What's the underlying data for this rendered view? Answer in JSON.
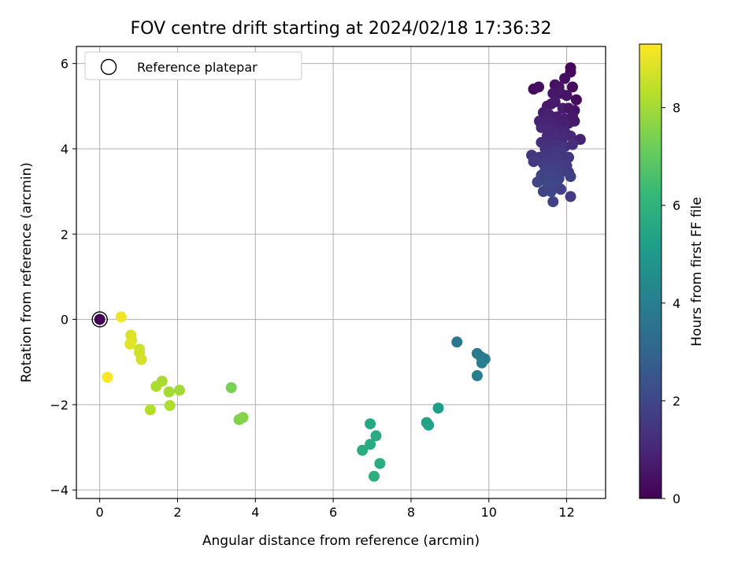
{
  "chart_data": {
    "type": "scatter",
    "title": "FOV centre drift starting at 2024/02/18 17:36:32",
    "xlabel": "Angular distance from reference (arcmin)",
    "ylabel": "Rotation from reference (arcmin)",
    "xlim": [
      -0.6,
      13.0
    ],
    "ylim": [
      -4.2,
      6.4
    ],
    "xticks": [
      0,
      2,
      4,
      6,
      8,
      10,
      12
    ],
    "yticks": [
      -4,
      -2,
      0,
      2,
      4,
      6
    ],
    "grid": true,
    "legend": {
      "position": "top-left",
      "entries": [
        "Reference platepar"
      ]
    },
    "reference_point": {
      "x": 0,
      "y": 0
    },
    "colorbar": {
      "label": "Hours from first FF file",
      "min": 0,
      "max": 9.3,
      "ticks": [
        0,
        2,
        4,
        6,
        8
      ],
      "colormap": "viridis",
      "stops": [
        "#440154",
        "#482878",
        "#3e4989",
        "#31688e",
        "#26828e",
        "#1f9e89",
        "#35b779",
        "#6ece58",
        "#b5de2b",
        "#fde725"
      ]
    },
    "series": [
      {
        "points": [
          {
            "x": 0.0,
            "y": 0.0,
            "c": 0.0
          },
          {
            "x": 11.15,
            "y": 5.4,
            "c": 0.3
          },
          {
            "x": 11.28,
            "y": 5.45,
            "c": 0.35
          },
          {
            "x": 12.1,
            "y": 5.9,
            "c": 0.2
          },
          {
            "x": 12.1,
            "y": 5.8,
            "c": 0.25
          },
          {
            "x": 11.95,
            "y": 5.65,
            "c": 0.4
          },
          {
            "x": 11.7,
            "y": 5.5,
            "c": 0.45
          },
          {
            "x": 11.8,
            "y": 5.45,
            "c": 0.5
          },
          {
            "x": 12.15,
            "y": 5.45,
            "c": 0.3
          },
          {
            "x": 11.65,
            "y": 5.3,
            "c": 0.55
          },
          {
            "x": 11.85,
            "y": 5.3,
            "c": 0.6
          },
          {
            "x": 12.0,
            "y": 5.25,
            "c": 0.5
          },
          {
            "x": 12.25,
            "y": 5.15,
            "c": 0.3
          },
          {
            "x": 11.5,
            "y": 5.0,
            "c": 0.65
          },
          {
            "x": 11.6,
            "y": 5.05,
            "c": 0.6
          },
          {
            "x": 11.7,
            "y": 5.1,
            "c": 0.7
          },
          {
            "x": 11.9,
            "y": 4.95,
            "c": 0.75
          },
          {
            "x": 12.05,
            "y": 4.95,
            "c": 0.55
          },
          {
            "x": 12.2,
            "y": 4.9,
            "c": 0.5
          },
          {
            "x": 11.4,
            "y": 4.85,
            "c": 0.8
          },
          {
            "x": 11.55,
            "y": 4.8,
            "c": 0.85
          },
          {
            "x": 11.75,
            "y": 4.75,
            "c": 0.8
          },
          {
            "x": 11.95,
            "y": 4.7,
            "c": 0.75
          },
          {
            "x": 12.15,
            "y": 4.75,
            "c": 0.65
          },
          {
            "x": 11.3,
            "y": 4.65,
            "c": 0.9
          },
          {
            "x": 11.45,
            "y": 4.6,
            "c": 0.95
          },
          {
            "x": 11.65,
            "y": 4.6,
            "c": 0.9
          },
          {
            "x": 11.85,
            "y": 4.55,
            "c": 0.85
          },
          {
            "x": 12.05,
            "y": 4.6,
            "c": 0.8
          },
          {
            "x": 12.2,
            "y": 4.65,
            "c": 0.7
          },
          {
            "x": 11.35,
            "y": 4.5,
            "c": 1.0
          },
          {
            "x": 11.55,
            "y": 4.45,
            "c": 1.05
          },
          {
            "x": 11.75,
            "y": 4.4,
            "c": 1.0
          },
          {
            "x": 11.95,
            "y": 4.4,
            "c": 0.95
          },
          {
            "x": 11.5,
            "y": 4.3,
            "c": 1.1
          },
          {
            "x": 11.7,
            "y": 4.25,
            "c": 1.15
          },
          {
            "x": 11.9,
            "y": 4.25,
            "c": 1.1
          },
          {
            "x": 12.1,
            "y": 4.3,
            "c": 1.0
          },
          {
            "x": 12.35,
            "y": 4.22,
            "c": 0.9
          },
          {
            "x": 11.35,
            "y": 4.15,
            "c": 1.25
          },
          {
            "x": 11.55,
            "y": 4.1,
            "c": 1.3
          },
          {
            "x": 11.75,
            "y": 4.1,
            "c": 1.35
          },
          {
            "x": 11.95,
            "y": 4.05,
            "c": 1.3
          },
          {
            "x": 12.15,
            "y": 4.1,
            "c": 1.2
          },
          {
            "x": 11.45,
            "y": 4.0,
            "c": 1.4
          },
          {
            "x": 11.65,
            "y": 3.95,
            "c": 1.45
          },
          {
            "x": 11.85,
            "y": 3.95,
            "c": 1.5
          },
          {
            "x": 11.1,
            "y": 3.85,
            "c": 1.4
          },
          {
            "x": 11.3,
            "y": 3.8,
            "c": 1.5
          },
          {
            "x": 11.5,
            "y": 3.8,
            "c": 1.55
          },
          {
            "x": 11.7,
            "y": 3.8,
            "c": 1.6
          },
          {
            "x": 11.9,
            "y": 3.75,
            "c": 1.55
          },
          {
            "x": 12.05,
            "y": 3.8,
            "c": 1.45
          },
          {
            "x": 11.15,
            "y": 3.7,
            "c": 1.6
          },
          {
            "x": 11.4,
            "y": 3.65,
            "c": 1.65
          },
          {
            "x": 11.6,
            "y": 3.65,
            "c": 1.7
          },
          {
            "x": 11.8,
            "y": 3.6,
            "c": 1.75
          },
          {
            "x": 12.0,
            "y": 3.6,
            "c": 1.65
          },
          {
            "x": 11.45,
            "y": 3.5,
            "c": 1.8
          },
          {
            "x": 11.65,
            "y": 3.5,
            "c": 1.85
          },
          {
            "x": 11.85,
            "y": 3.45,
            "c": 1.8
          },
          {
            "x": 12.05,
            "y": 3.45,
            "c": 1.7
          },
          {
            "x": 11.35,
            "y": 3.38,
            "c": 1.9
          },
          {
            "x": 11.6,
            "y": 3.35,
            "c": 1.95
          },
          {
            "x": 11.8,
            "y": 3.3,
            "c": 1.9
          },
          {
            "x": 12.1,
            "y": 3.35,
            "c": 1.75
          },
          {
            "x": 11.25,
            "y": 3.22,
            "c": 1.95
          },
          {
            "x": 11.5,
            "y": 3.2,
            "c": 2.0
          },
          {
            "x": 11.75,
            "y": 3.18,
            "c": 2.0
          },
          {
            "x": 11.4,
            "y": 3.0,
            "c": 1.9
          },
          {
            "x": 11.6,
            "y": 3.0,
            "c": 1.95
          },
          {
            "x": 11.85,
            "y": 3.05,
            "c": 1.85
          },
          {
            "x": 12.1,
            "y": 2.88,
            "c": 1.6
          },
          {
            "x": 11.65,
            "y": 2.76,
            "c": 1.8
          },
          {
            "x": 9.18,
            "y": -0.53,
            "c": 3.7
          },
          {
            "x": 9.7,
            "y": -0.8,
            "c": 3.8
          },
          {
            "x": 9.8,
            "y": -0.88,
            "c": 3.85
          },
          {
            "x": 9.9,
            "y": -0.93,
            "c": 3.9
          },
          {
            "x": 9.82,
            "y": -1.02,
            "c": 3.95
          },
          {
            "x": 9.7,
            "y": -1.32,
            "c": 4.0
          },
          {
            "x": 8.7,
            "y": -2.08,
            "c": 5.2
          },
          {
            "x": 8.4,
            "y": -2.42,
            "c": 5.3
          },
          {
            "x": 8.45,
            "y": -2.48,
            "c": 5.35
          },
          {
            "x": 6.95,
            "y": -2.45,
            "c": 5.6
          },
          {
            "x": 7.1,
            "y": -2.73,
            "c": 5.65
          },
          {
            "x": 6.95,
            "y": -2.93,
            "c": 5.7
          },
          {
            "x": 6.75,
            "y": -3.07,
            "c": 5.75
          },
          {
            "x": 7.2,
            "y": -3.38,
            "c": 5.8
          },
          {
            "x": 7.05,
            "y": -3.68,
            "c": 5.85
          },
          {
            "x": 3.38,
            "y": -1.6,
            "c": 7.4
          },
          {
            "x": 3.58,
            "y": -2.35,
            "c": 7.5
          },
          {
            "x": 3.68,
            "y": -2.3,
            "c": 7.55
          },
          {
            "x": 1.6,
            "y": -1.45,
            "c": 8.1
          },
          {
            "x": 1.45,
            "y": -1.57,
            "c": 8.15
          },
          {
            "x": 2.05,
            "y": -1.66,
            "c": 8.0
          },
          {
            "x": 1.78,
            "y": -1.7,
            "c": 8.05
          },
          {
            "x": 1.8,
            "y": -2.02,
            "c": 8.2
          },
          {
            "x": 1.3,
            "y": -2.12,
            "c": 8.25
          },
          {
            "x": 1.02,
            "y": -0.7,
            "c": 8.6
          },
          {
            "x": 1.02,
            "y": -0.78,
            "c": 8.65
          },
          {
            "x": 1.07,
            "y": -0.94,
            "c": 8.7
          },
          {
            "x": 0.8,
            "y": -0.37,
            "c": 8.8
          },
          {
            "x": 0.82,
            "y": -0.5,
            "c": 8.85
          },
          {
            "x": 0.78,
            "y": -0.58,
            "c": 8.9
          },
          {
            "x": 0.55,
            "y": 0.06,
            "c": 9.1
          },
          {
            "x": 0.2,
            "y": -1.36,
            "c": 9.25
          }
        ]
      }
    ]
  }
}
